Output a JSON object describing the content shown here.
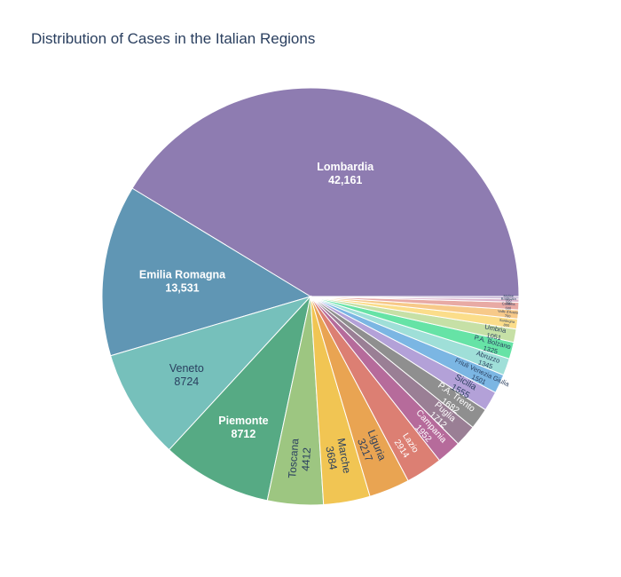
{
  "chart_data": {
    "type": "pie",
    "title": "Distribution of Cases in the Italian Regions",
    "slices": [
      {
        "label": "Lombardia",
        "value": 42161,
        "value_text": "42,161",
        "color": "#8e7cb1",
        "text_color": "#ffffff"
      },
      {
        "label": "Emilia Romagna",
        "value": 13531,
        "value_text": "13,531",
        "color": "#6096b4",
        "text_color": "#ffffff"
      },
      {
        "label": "Veneto",
        "value": 8724,
        "value_text": "8724",
        "color": "#76c0bb",
        "text_color": "#2a3f5f"
      },
      {
        "label": "Piemonte",
        "value": 8712,
        "value_text": "8712",
        "color": "#56aa84",
        "text_color": "#ffffff"
      },
      {
        "label": "Toscana",
        "value": 4412,
        "value_text": "4412",
        "color": "#9dc681",
        "text_color": "#2a3f5f"
      },
      {
        "label": "Marche",
        "value": 3684,
        "value_text": "3684",
        "color": "#f1c553",
        "text_color": "#2a3f5f"
      },
      {
        "label": "Liguria",
        "value": 3217,
        "value_text": "3217",
        "color": "#e9a452",
        "text_color": "#2a3f5f"
      },
      {
        "label": "Lazio",
        "value": 2914,
        "value_text": "2914",
        "color": "#dc7f73",
        "text_color": "#ffffff"
      },
      {
        "label": "Campania",
        "value": 1952,
        "value_text": "1952",
        "color": "#b66b9b",
        "text_color": "#ffffff"
      },
      {
        "label": "Puglia",
        "value": 1712,
        "value_text": "1712",
        "color": "#9a7f95",
        "text_color": "#ffffff"
      },
      {
        "label": "P.A. Trento",
        "value": 1682,
        "value_text": "1682",
        "color": "#8f8f8f",
        "text_color": "#ffffff"
      },
      {
        "label": "Sicilia",
        "value": 1555,
        "value_text": "1555",
        "color": "#b3a1d8",
        "text_color": "#2a3f5f"
      },
      {
        "label": "Friuli Venezia Giulia",
        "value": 1501,
        "value_text": "1501",
        "color": "#7bb6e3",
        "text_color": "#2a3f5f"
      },
      {
        "label": "Abruzzo",
        "value": 1345,
        "value_text": "1345",
        "color": "#9fdfd8",
        "text_color": "#2a3f5f"
      },
      {
        "label": "P.A. Bolzano",
        "value": 1325,
        "value_text": "1325",
        "color": "#66e3a6",
        "text_color": "#2a3f5f"
      },
      {
        "label": "Umbria",
        "value": 1051,
        "value_text": "1051",
        "color": "#c6e0a6",
        "text_color": "#2a3f5f"
      },
      {
        "label": "Sardegna",
        "value": 800,
        "value_text": "800",
        "color": "#fbdd8a",
        "text_color": "#2a3f5f"
      },
      {
        "label": "Valle d'Aosta",
        "value": 700,
        "value_text": "700",
        "color": "#f7c989",
        "text_color": "#2a3f5f"
      },
      {
        "label": "Calabria",
        "value": 600,
        "value_text": "600",
        "color": "#e8aaa4",
        "text_color": "#2a3f5f"
      },
      {
        "label": "Basilicata",
        "value": 250,
        "value_text": "250",
        "color": "#dcb3cb",
        "text_color": "#2a3f5f"
      },
      {
        "label": "Molise",
        "value": 200,
        "value_text": "200",
        "color": "#c8b6d6",
        "text_color": "#2a3f5f"
      }
    ]
  }
}
